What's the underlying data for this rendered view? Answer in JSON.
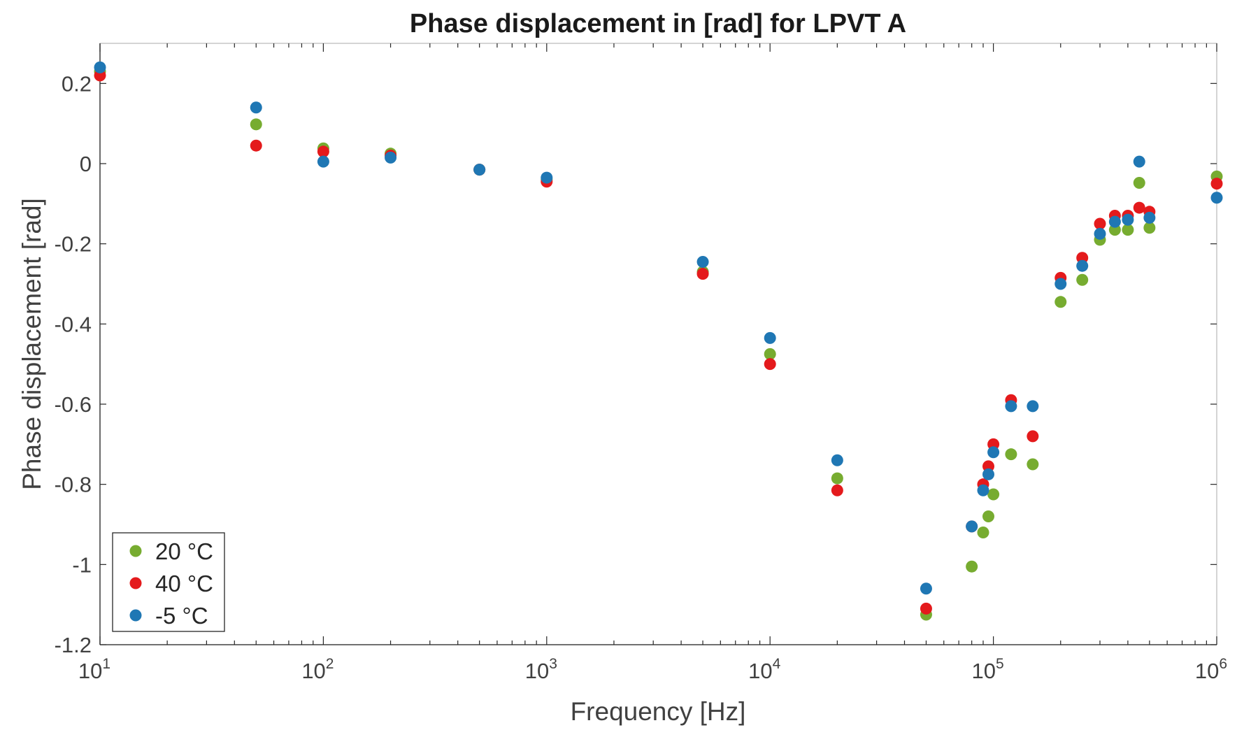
{
  "chart_data": {
    "type": "scatter",
    "title": "Phase displacement in [rad] for LPVT A",
    "xlabel": "Frequency [Hz]",
    "ylabel": "Phase displacement [rad]",
    "xscale": "log",
    "xlim": [
      10,
      1000000
    ],
    "ylim": [
      -1.2,
      0.3
    ],
    "grid": false,
    "legend_position": "bottom-left",
    "x_ticks": [
      {
        "base": "10",
        "exp": "1",
        "value": 10
      },
      {
        "base": "10",
        "exp": "2",
        "value": 100
      },
      {
        "base": "10",
        "exp": "3",
        "value": 1000
      },
      {
        "base": "10",
        "exp": "4",
        "value": 10000
      },
      {
        "base": "10",
        "exp": "5",
        "value": 100000
      },
      {
        "base": "10",
        "exp": "6",
        "value": 1000000
      }
    ],
    "y_ticks": [
      {
        "label": "0.2",
        "value": 0.2
      },
      {
        "label": "0",
        "value": 0
      },
      {
        "label": "-0.2",
        "value": -0.2
      },
      {
        "label": "-0.4",
        "value": -0.4
      },
      {
        "label": "-0.6",
        "value": -0.6
      },
      {
        "label": "-0.8",
        "value": -0.8
      },
      {
        "label": "-1",
        "value": -1.0
      },
      {
        "label": "-1.2",
        "value": -1.2
      }
    ],
    "series": [
      {
        "name": "20 °C",
        "color": "#77ac30",
        "x": [
          10,
          50,
          100,
          200,
          500,
          1000,
          5000,
          10000,
          20000,
          50000,
          80000,
          90000,
          95000,
          100000,
          120000,
          150000,
          200000,
          250000,
          300000,
          350000,
          400000,
          450000,
          500000,
          1000000
        ],
        "y": [
          0.23,
          0.098,
          0.038,
          0.025,
          -0.015,
          -0.04,
          -0.27,
          -0.475,
          -0.785,
          -1.125,
          -1.005,
          -0.92,
          -0.88,
          -0.825,
          -0.725,
          -0.75,
          -0.345,
          -0.29,
          -0.19,
          -0.165,
          -0.165,
          -0.048,
          -0.16,
          -0.032
        ]
      },
      {
        "name": "40 °C",
        "color": "#e41a1c",
        "x": [
          10,
          50,
          100,
          200,
          500,
          1000,
          5000,
          10000,
          20000,
          50000,
          80000,
          90000,
          95000,
          100000,
          120000,
          150000,
          200000,
          250000,
          300000,
          350000,
          400000,
          450000,
          500000,
          1000000
        ],
        "y": [
          0.22,
          0.045,
          0.03,
          0.02,
          -0.015,
          -0.045,
          -0.275,
          -0.5,
          -0.815,
          -1.11,
          -0.905,
          -0.8,
          -0.755,
          -0.7,
          -0.59,
          -0.68,
          -0.285,
          -0.235,
          -0.15,
          -0.13,
          -0.13,
          -0.11,
          -0.12,
          -0.05
        ]
      },
      {
        "name": "-5 °C",
        "color": "#1f77b4",
        "x": [
          10,
          50,
          100,
          200,
          500,
          1000,
          5000,
          10000,
          20000,
          50000,
          80000,
          90000,
          95000,
          100000,
          120000,
          150000,
          200000,
          250000,
          300000,
          350000,
          400000,
          450000,
          500000,
          1000000
        ],
        "y": [
          0.24,
          0.14,
          0.005,
          0.015,
          -0.015,
          -0.035,
          -0.245,
          -0.435,
          -0.74,
          -1.06,
          -0.905,
          -0.815,
          -0.775,
          -0.72,
          -0.605,
          -0.605,
          -0.3,
          -0.255,
          -0.175,
          -0.145,
          -0.14,
          0.005,
          -0.135,
          -0.085
        ]
      }
    ]
  }
}
